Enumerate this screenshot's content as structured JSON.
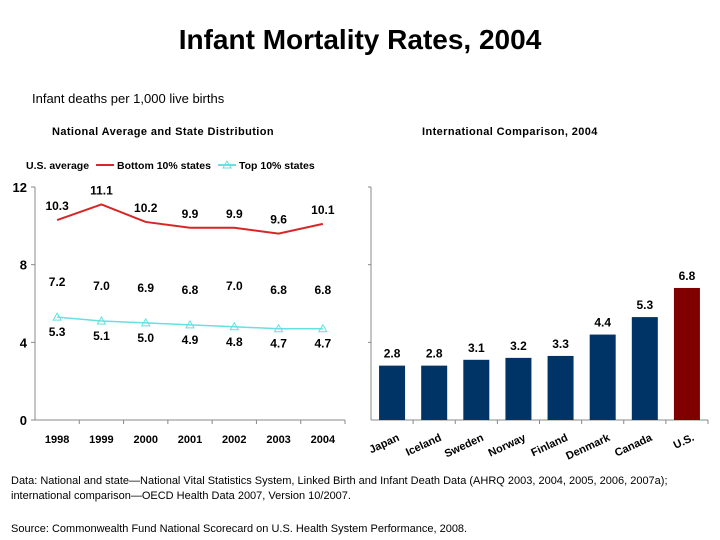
{
  "title": "Infant Mortality Rates, 2004",
  "subtitle": "Infant deaths per 1,000 live births",
  "note": "Data: National and state—National Vital Statistics System, Linked Birth and Infant Death Data (AHRQ 2003, 2004, 2005, 2006, 2007a); international comparison—OECD Health Data 2007, Version 10/2007.",
  "source": "Source: Commonwealth Fund National Scorecard on U.S. Health System Performance, 2008.",
  "chart_data": [
    {
      "type": "line",
      "title": "National Average and State Distribution",
      "categories": [
        "1998",
        "1999",
        "2000",
        "2001",
        "2002",
        "2003",
        "2004"
      ],
      "ylim": [
        0,
        12
      ],
      "yticks": [
        "0",
        "4",
        "8",
        "12"
      ],
      "legend_position": "top",
      "grid": false,
      "series": [
        {
          "name": "U.S. average",
          "values": [
            7.2,
            7.0,
            6.9,
            6.8,
            7.0,
            6.8,
            6.8
          ],
          "color": "#ffffff",
          "labels": [
            "7.2",
            "7.0",
            "6.9",
            "6.8",
            "7.0",
            "6.8",
            "6.8"
          ]
        },
        {
          "name": "Bottom 10% states",
          "values": [
            10.3,
            11.1,
            10.2,
            9.9,
            9.9,
            9.6,
            10.1
          ],
          "color": "#d62728",
          "labels": [
            "10.3",
            "11.1",
            "10.2",
            "9.9",
            "9.9",
            "9.6",
            "10.1"
          ]
        },
        {
          "name": "Top 10% states",
          "values": [
            5.3,
            5.1,
            5.0,
            4.9,
            4.8,
            4.7,
            4.7
          ],
          "color": "#66e0e0",
          "labels": [
            "5.3",
            "5.1",
            "5.0",
            "4.9",
            "4.8",
            "4.7",
            "4.7"
          ]
        }
      ]
    },
    {
      "type": "bar",
      "title": "International Comparison, 2004",
      "categories": [
        "Japan",
        "Iceland",
        "Sweden",
        "Norway",
        "Finland",
        "Denmark",
        "Canada",
        "U.S."
      ],
      "values": [
        2.8,
        2.8,
        3.1,
        3.2,
        3.3,
        4.4,
        5.3,
        6.8
      ],
      "labels": [
        "2.8",
        "2.8",
        "3.1",
        "3.2",
        "3.3",
        "4.4",
        "5.3",
        "6.8"
      ],
      "ylim": [
        0,
        12
      ],
      "colors": {
        "default": "#003366",
        "highlight": "#800000"
      },
      "highlight": "U.S."
    }
  ]
}
